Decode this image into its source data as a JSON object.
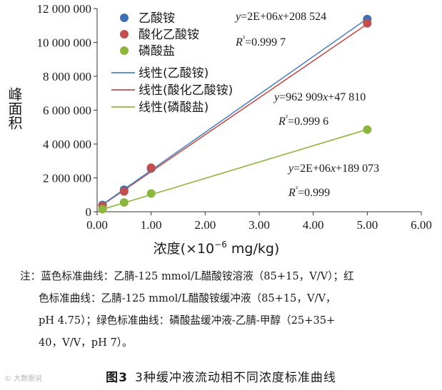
{
  "chart_data": {
    "type": "scatter",
    "xlabel_prefix": "浓度(×10",
    "xlabel_exp": "−6",
    "xlabel_suffix": " mg/kg)",
    "ylabel": "峰面积",
    "xlim": [
      0,
      6
    ],
    "ylim": [
      0,
      12000000
    ],
    "xticks": [
      0,
      1,
      2,
      3,
      4,
      5,
      6
    ],
    "xtick_labels": [
      "0.00",
      "1.00",
      "2.00",
      "3.00",
      "4.00",
      "5.00",
      "6.00"
    ],
    "yticks": [
      0,
      2000000,
      4000000,
      6000000,
      8000000,
      10000000,
      12000000
    ],
    "ytick_labels": [
      "0",
      "2 000 000",
      "4 000 000",
      "6 000 000",
      "8 000 000",
      "10 000 000",
      "12 000 000"
    ],
    "grid": false,
    "legend_position": "top-left",
    "series": [
      {
        "name": "乙酸铵",
        "fit_name": "线性(乙酸铵)",
        "color": "#3f6fb2",
        "line_color": "#4f81bd",
        "x": [
          0.1,
          0.5,
          1.0,
          5.0
        ],
        "y": [
          400000,
          1300000,
          2550000,
          11380000
        ],
        "slope": 2240000,
        "intercept": 208524,
        "eq": "y=2E+06x+208 524",
        "r2": "R²=0.999 7"
      },
      {
        "name": "酸化乙酸铵",
        "fit_name": "线性(酸化乙酸铵)",
        "color": "#c0504d",
        "line_color": "#c0504d",
        "x": [
          0.1,
          0.5,
          1.0,
          5.0
        ],
        "y": [
          350000,
          1200000,
          2600000,
          11130000
        ],
        "slope": 2180000,
        "intercept": 189073,
        "eq": "y=2E+06x+189 073",
        "r2": "R²=0.999"
      },
      {
        "name": "磷酸盐",
        "fit_name": "线性(磷酸盐)",
        "color": "#8db640",
        "line_color": "#8db640",
        "x": [
          0.1,
          0.5,
          1.0,
          5.0
        ],
        "y": [
          150000,
          550000,
          1080000,
          4850000
        ],
        "slope": 962909,
        "intercept": 47810,
        "eq": "y=962 909x+47 810",
        "r2": "R²=0.999 6"
      }
    ]
  },
  "note": {
    "line1": "注：蓝色标准曲线：乙腈-125 mmol/L醋酸铵溶液（85+15，V/V）；红",
    "line2": "色标准曲线：乙腈-125 mmol/L醋酸铵缓冲液（85+15，V/V，",
    "line3": "pH 4.75）；绿色标准曲线：磷酸盐缓冲液-乙腈-甲醇（25+35+",
    "line4": "40，V/V，pH 7）。"
  },
  "caption": {
    "fig_label": "图3",
    "title": "3种缓冲液流动相不同浓度标准曲线"
  },
  "watermark": "© 大数据说"
}
